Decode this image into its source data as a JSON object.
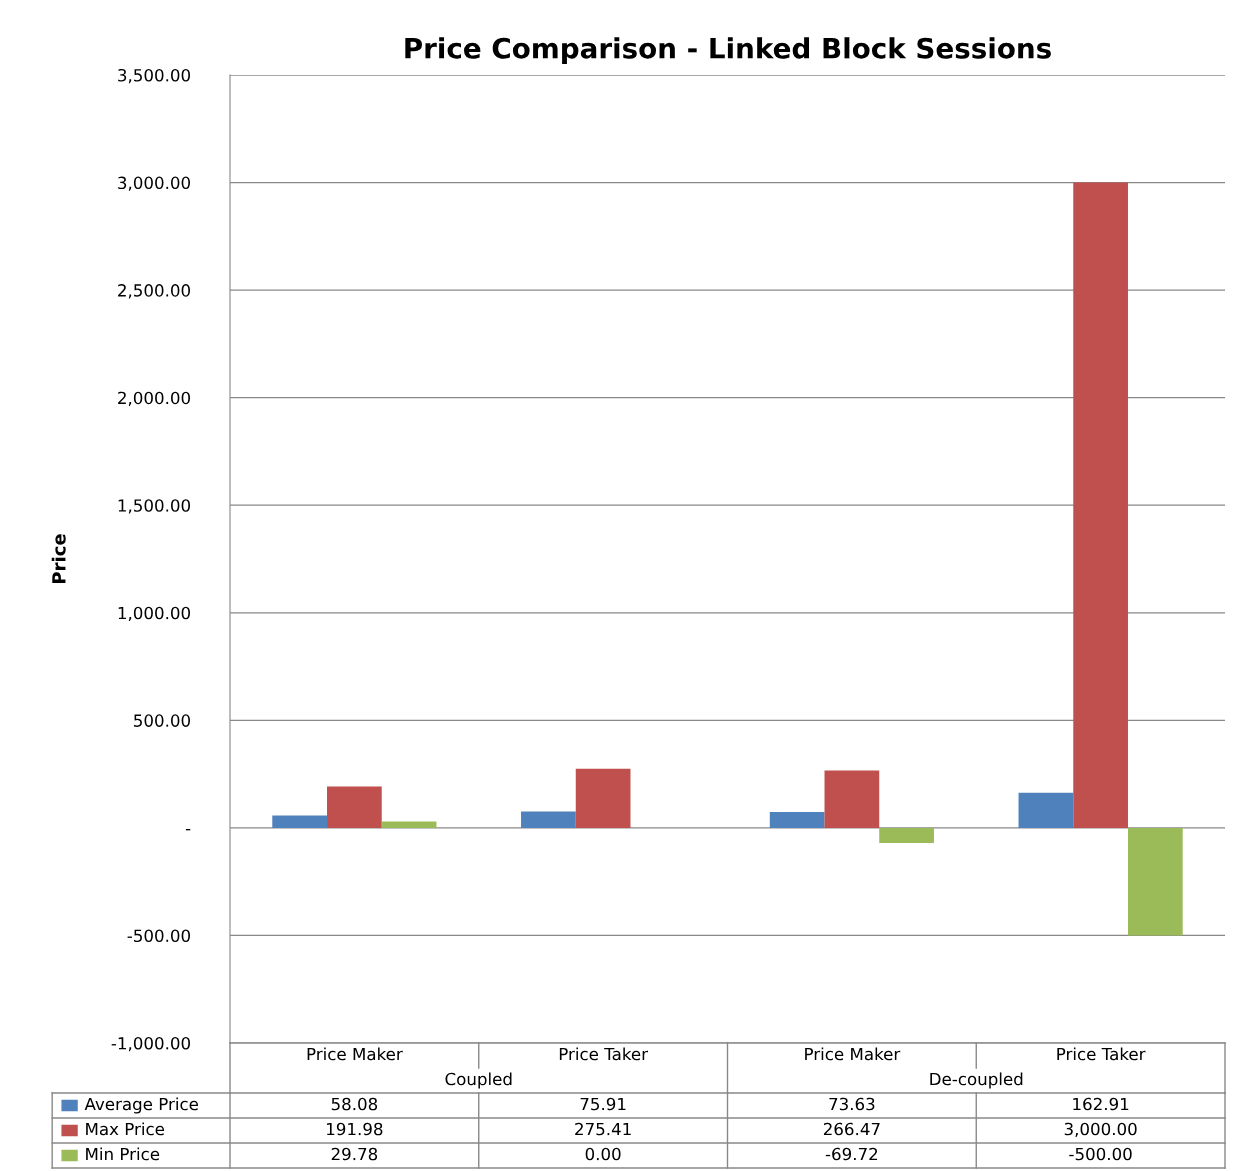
{
  "chart_data": {
    "type": "bar",
    "title": "Price Comparison - Linked Block Sessions",
    "ylabel": "Price",
    "categories": [
      "Price Maker",
      "Price Taker",
      "Price Maker",
      "Price Taker"
    ],
    "annotations": [
      "Coupled",
      "De-coupled"
    ],
    "series": [
      {
        "name": "Average Price",
        "color": "#4f81bd",
        "values": [
          58.08,
          75.91,
          73.63,
          162.91
        ],
        "value_labels": [
          "58.08",
          "75.91",
          "73.63",
          "162.91"
        ]
      },
      {
        "name": "Max Price",
        "color": "#c0504d",
        "values": [
          191.98,
          275.41,
          266.47,
          3000.0
        ],
        "value_labels": [
          "191.98",
          "275.41",
          "266.47",
          "3,000.00"
        ]
      },
      {
        "name": "Min Price",
        "color": "#9bbb59",
        "values": [
          29.78,
          0.0,
          -69.72,
          -500.0
        ],
        "value_labels": [
          "29.78",
          "0.00",
          "-69.72",
          "-500.00"
        ]
      }
    ],
    "ylim": [
      -1000,
      3500
    ],
    "yticks": [
      {
        "value": -1000,
        "label": "-1,000.00"
      },
      {
        "value": -500,
        "label": "-500.00"
      },
      {
        "value": 0,
        "label": "-"
      },
      {
        "value": 500,
        "label": "500.00"
      },
      {
        "value": 1000,
        "label": "1,000.00"
      },
      {
        "value": 1500,
        "label": "1,500.00"
      },
      {
        "value": 2000,
        "label": "2,000.00"
      },
      {
        "value": 2500,
        "label": "2,500.00"
      },
      {
        "value": 3000,
        "label": "3,000.00"
      },
      {
        "value": 3500,
        "label": "3,500.00"
      }
    ],
    "grid": "y",
    "legend": "bottom"
  }
}
